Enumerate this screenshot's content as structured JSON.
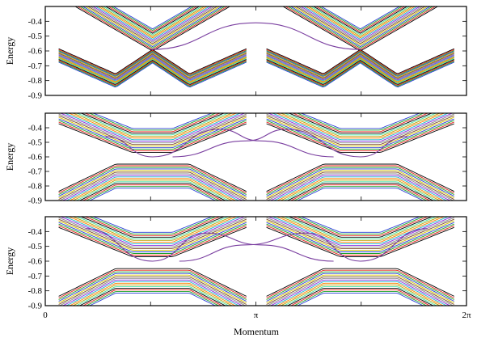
{
  "chart_data": [
    {
      "type": "line",
      "ylabel": "Energy",
      "xlabel": "",
      "xlim": [
        0,
        6.2832
      ],
      "ylim": [
        -0.9,
        -0.3
      ],
      "yticks": [
        "-0.4",
        "-0.5",
        "-0.6",
        "-0.7",
        "-0.8",
        "-0.9"
      ],
      "xticks": [],
      "series": [
        {
          "role": "edge-state",
          "color": "#7a3fa0",
          "x": [
            1.571,
            3.142,
            4.712
          ],
          "values": [
            -0.59,
            -0.41,
            -0.59
          ]
        }
      ],
      "bulk_bands": {
        "centers": [
          1.6,
          4.7
        ],
        "gap_top": -0.6,
        "gap_bottom": -0.59,
        "lower_floor": -0.8,
        "crossing_at_centers": true
      }
    },
    {
      "type": "line",
      "ylabel": "Energy",
      "xlabel": "",
      "xlim": [
        0,
        6.2832
      ],
      "ylim": [
        -0.9,
        -0.3
      ],
      "yticks": [
        "-0.4",
        "-0.5",
        "-0.6",
        "-0.7",
        "-0.8",
        "-0.9"
      ],
      "xticks": [],
      "series": [
        {
          "role": "edge-state-a",
          "color": "#7a3fa0",
          "x": [
            0.9,
            1.6,
            2.6,
            3.2,
            4.3
          ],
          "values": [
            -0.46,
            -0.6,
            -0.41,
            -0.49,
            -0.6
          ]
        },
        {
          "role": "edge-state-b",
          "color": "#7a3fa0",
          "x": [
            1.9,
            3.0,
            3.6,
            4.7,
            5.4
          ],
          "values": [
            -0.6,
            -0.49,
            -0.41,
            -0.6,
            -0.46
          ]
        }
      ],
      "bulk_bands": {
        "centers": [
          1.6,
          4.7
        ],
        "gap_top": -0.55,
        "gap_bottom": -0.6,
        "lower_floor": -0.75,
        "crossing_at_centers": false
      }
    },
    {
      "type": "line",
      "ylabel": "Energy",
      "xlabel": "Momentum",
      "xlim": [
        0,
        6.2832
      ],
      "ylim": [
        -0.9,
        -0.3
      ],
      "yticks": [
        "-0.4",
        "-0.5",
        "-0.6",
        "-0.7",
        "-0.8",
        "-0.9"
      ],
      "xticks": [
        "0",
        "π",
        "2π"
      ],
      "series": [
        {
          "role": "edge-state-a",
          "color": "#7a3fa0",
          "x": [
            0.6,
            1.6,
            2.4,
            3.2,
            4.3
          ],
          "values": [
            -0.38,
            -0.6,
            -0.41,
            -0.49,
            -0.6
          ]
        },
        {
          "role": "edge-state-b",
          "color": "#7a3fa0",
          "x": [
            2.0,
            3.0,
            3.9,
            4.7,
            5.7
          ],
          "values": [
            -0.6,
            -0.49,
            -0.41,
            -0.6,
            -0.38
          ]
        }
      ],
      "bulk_bands": {
        "centers": [
          1.6,
          4.7
        ],
        "gap_top": -0.55,
        "gap_bottom": -0.6,
        "lower_floor": -0.75,
        "crossing_at_centers": false
      }
    }
  ],
  "colors": {
    "edge_state": "#7a3fa0",
    "bands": [
      "#000000",
      "#e8221b",
      "#1fa52a",
      "#2a3fd6",
      "#d4c300",
      "#7d4a2a",
      "#888888",
      "#8a2be2",
      "#1ab6c8",
      "#ff7f00",
      "#b8a000",
      "#40e0a0"
    ]
  }
}
